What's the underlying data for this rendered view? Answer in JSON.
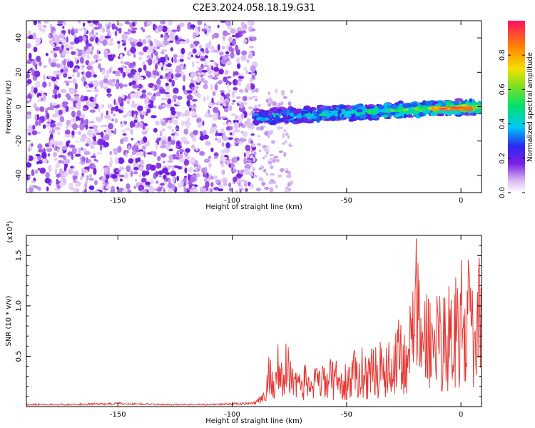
{
  "figure_title": "C2E3.2024.058.18.19.G31",
  "chart_data": [
    {
      "type": "heatmap",
      "xlabel": "Height of straight line (km)",
      "ylabel": "Frequency (Hz)",
      "xlim": [
        -190,
        9
      ],
      "ylim": [
        -50,
        50
      ],
      "x_ticks": [
        -150,
        -100,
        -50,
        0
      ],
      "y_ticks": [
        -40,
        -20,
        0,
        20,
        40
      ],
      "x_tick_labels": [
        "-150",
        "-100",
        "-50",
        "0"
      ],
      "y_tick_labels": [
        "-40",
        "-20",
        "0",
        "20",
        "40"
      ],
      "colorbar": {
        "label": "Normalized spectral amplitude",
        "range": [
          0,
          1
        ],
        "ticks": [
          0.0,
          0.2,
          0.4,
          0.6,
          0.8
        ],
        "tick_labels": [
          "0.0",
          "0.2",
          "0.4",
          "0.6",
          "0.8"
        ]
      },
      "regions": [
        {
          "x_range": [
            -190,
            -90
          ],
          "frequency_range": [
            -50,
            50
          ],
          "amplitude": "low (0.05-0.35), scattered noise"
        },
        {
          "x_range": [
            -90,
            9
          ],
          "frequency_center": 0,
          "frequency_halfwidth": 4,
          "amplitude": "0.3-0.9, narrowband line near 0 Hz, strongest near 0 km"
        }
      ],
      "grid": false
    },
    {
      "type": "line",
      "xlabel": "Height of straight line (km)",
      "ylabel": "SNR (10 * v/v)",
      "y_exponent_label": "(x10",
      "y_exponent_power": "4",
      "y_exponent_close": ")",
      "xlim": [
        -190,
        9
      ],
      "ylim": [
        0,
        1.7
      ],
      "x_ticks": [
        -150,
        -100,
        -50,
        0
      ],
      "y_ticks": [
        0.5,
        1.0,
        1.5
      ],
      "x_tick_labels": [
        "-150",
        "-100",
        "-50",
        "0"
      ],
      "y_tick_labels": [
        "0.5",
        "1.0",
        "1.5"
      ],
      "series": [
        {
          "color": "#e53935",
          "x": [
            -190,
            -170,
            -150,
            -130,
            -110,
            -95,
            -90,
            -86,
            -84,
            -82,
            -80,
            -78,
            -76,
            -74,
            -72,
            -70,
            -68,
            -65,
            -60,
            -55,
            -52,
            -50,
            -45,
            -40,
            -35,
            -30,
            -28,
            -25,
            -22,
            -20,
            -19,
            -18,
            -15,
            -12,
            -10,
            -8,
            -5,
            -2,
            0,
            2,
            4,
            6,
            8,
            9
          ],
          "y": [
            0.02,
            0.02,
            0.03,
            0.02,
            0.02,
            0.03,
            0.04,
            0.12,
            0.45,
            0.3,
            0.55,
            0.3,
            0.6,
            0.35,
            0.5,
            0.25,
            0.35,
            0.3,
            0.35,
            0.4,
            0.3,
            0.35,
            0.5,
            0.45,
            0.55,
            0.5,
            0.95,
            0.6,
            0.9,
            1.2,
            1.7,
            0.8,
            1.0,
            0.8,
            1.1,
            0.9,
            1.0,
            1.15,
            1.2,
            0.95,
            1.3,
            0.7,
            1.25,
            1.0
          ]
        }
      ]
    }
  ]
}
